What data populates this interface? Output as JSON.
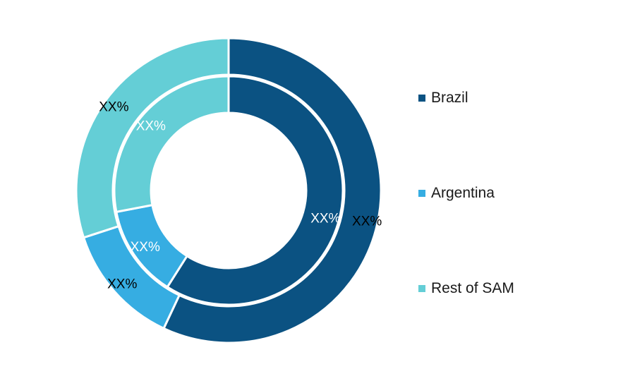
{
  "chart_data": {
    "type": "pie",
    "categories": [
      "Brazil",
      "Argentina",
      "Rest of SAM"
    ],
    "colors": {
      "Brazil": "#0b5282",
      "Argentina": "#36ade2",
      "Rest of SAM": "#64ced6"
    },
    "series": [
      {
        "ring": "outer",
        "values": [
          57,
          13,
          30
        ],
        "labels": [
          "XX%",
          "XX%",
          "XX%"
        ]
      },
      {
        "ring": "inner",
        "values": [
          59,
          13,
          28
        ],
        "labels": [
          "XX%",
          "XX%",
          "XX%"
        ]
      }
    ],
    "legend": {
      "position": "right",
      "items": [
        "Brazil",
        "Argentina",
        "Rest of SAM"
      ]
    }
  }
}
